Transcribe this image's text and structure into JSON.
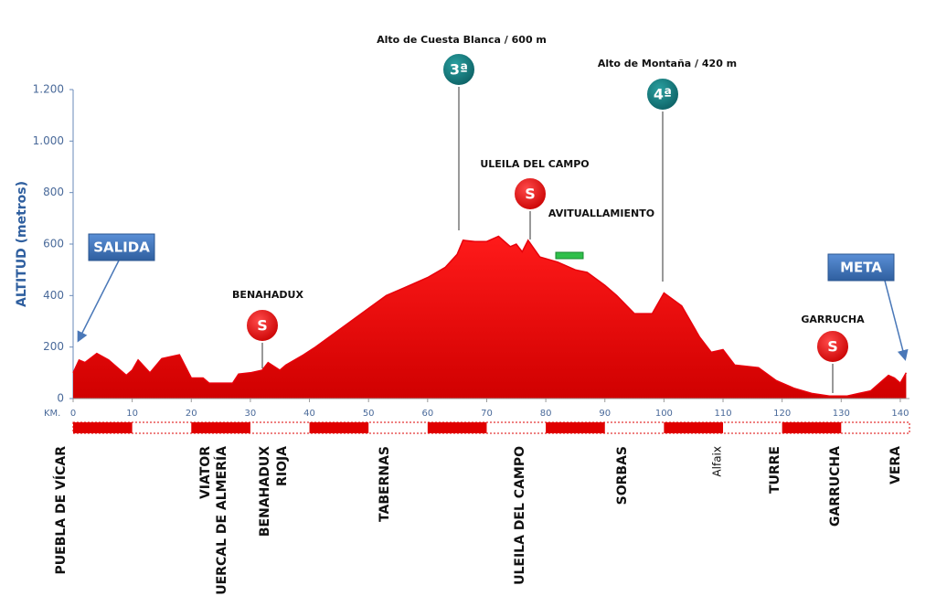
{
  "chart_data": {
    "type": "area",
    "y_label": "ALTITUD (metros)",
    "x_label": "KM.",
    "x": [
      0,
      1,
      2,
      4,
      6,
      8,
      9,
      10,
      11,
      13,
      15,
      17,
      18,
      20,
      22,
      23,
      27,
      28,
      30,
      32,
      33,
      35,
      36,
      39,
      41,
      44,
      47,
      50,
      53,
      56,
      60,
      63,
      65,
      66,
      68,
      70,
      72,
      74,
      75,
      76,
      77,
      79,
      82,
      85,
      87,
      90,
      92,
      95,
      98,
      100,
      103,
      106,
      108,
      110,
      112,
      116,
      119,
      122,
      125,
      128,
      131,
      133,
      135,
      138,
      139,
      140,
      141
    ],
    "values": [
      100,
      150,
      140,
      175,
      150,
      110,
      90,
      110,
      150,
      100,
      155,
      165,
      170,
      80,
      80,
      60,
      60,
      95,
      100,
      110,
      140,
      110,
      130,
      170,
      200,
      250,
      300,
      350,
      400,
      430,
      470,
      510,
      560,
      615,
      610,
      610,
      630,
      590,
      600,
      570,
      615,
      550,
      530,
      500,
      490,
      440,
      400,
      330,
      330,
      410,
      360,
      240,
      180,
      190,
      130,
      120,
      70,
      40,
      20,
      10,
      10,
      20,
      30,
      90,
      80,
      60,
      100
    ],
    "color": "#e8000b",
    "xlim": [
      0,
      141
    ],
    "ylim": [
      0,
      1200
    ],
    "xticks": [
      0,
      10,
      20,
      30,
      40,
      50,
      60,
      70,
      80,
      90,
      100,
      110,
      120,
      130,
      140
    ],
    "yticks": [
      0,
      200,
      400,
      600,
      800,
      {
        "value": 1000,
        "label": "1.000"
      },
      {
        "value": 1200,
        "label": "1.200"
      }
    ],
    "climbs": [
      {
        "name": "Alto de Cuesta Blanca / 600 m",
        "category": "3ª"
      },
      {
        "name": "Alto de Montaña / 420 m",
        "category": "4ª"
      }
    ],
    "sprints": [
      {
        "name": "BENAHADUX",
        "label": "S"
      },
      {
        "name": "ULEILA DEL CAMPO",
        "label": "S"
      },
      {
        "name": "GARRUCHA",
        "label": "S"
      }
    ],
    "feed_zone": "AVITUALLAMIENTO",
    "start": "SALIDA",
    "finish": "META",
    "towns": [
      "PUEBLA DE VÍCAR",
      "VIATOR",
      "HUERCAL DE ALMERÍA",
      "BENAHADUX",
      "RIOJA",
      "TABERNAS",
      "ULEILA DEL CAMPO",
      "SORBAS",
      "Alfaix",
      "TURRE",
      "GARRUCHA",
      "VERA"
    ]
  }
}
